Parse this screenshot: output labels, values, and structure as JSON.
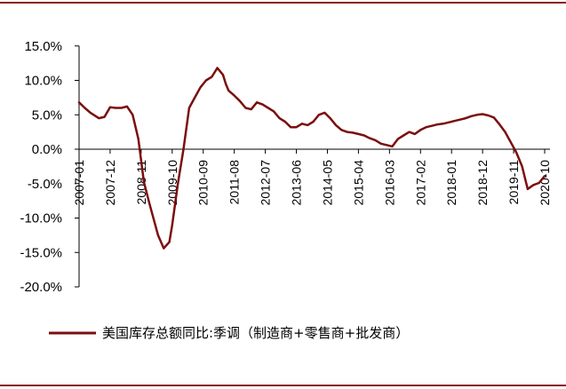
{
  "chart_data": {
    "type": "line",
    "color": "#7b0f0f",
    "ylim": [
      -20,
      15
    ],
    "ytick_labels": [
      "15.0%",
      "10.0%",
      "5.0%",
      "0.0%",
      "-5.0%",
      "-10.0%",
      "-15.0%",
      "-20.0%"
    ],
    "ytick_values": [
      15,
      10,
      5,
      0,
      -5,
      -10,
      -15,
      -20
    ],
    "xtick_labels": [
      "2007-01",
      "2007-12",
      "2008-11",
      "2009-10",
      "2010-09",
      "2011-08",
      "2012-07",
      "2013-06",
      "2014-05",
      "2015-04",
      "2016-03",
      "2017-02",
      "2018-01",
      "2018-12",
      "2019-11",
      "2020-10"
    ],
    "grid": false,
    "legend_position": "bottom",
    "series": [
      {
        "name": "美国库存总额同比:季调（制造商+零售商+批发商）",
        "x": [
          "2007-01",
          "2007-03",
          "2007-05",
          "2007-08",
          "2007-10",
          "2007-12",
          "2008-02",
          "2008-04",
          "2008-06",
          "2008-08",
          "2008-10",
          "2008-12",
          "2009-02",
          "2009-05",
          "2009-07",
          "2009-09",
          "2009-10",
          "2009-12",
          "2010-02",
          "2010-04",
          "2010-06",
          "2010-08",
          "2010-10",
          "2010-12",
          "2011-02",
          "2011-04",
          "2011-05",
          "2011-06",
          "2011-08",
          "2011-10",
          "2011-12",
          "2012-02",
          "2012-04",
          "2012-06",
          "2012-08",
          "2012-10",
          "2012-12",
          "2013-02",
          "2013-04",
          "2013-06",
          "2013-08",
          "2013-10",
          "2013-12",
          "2014-02",
          "2014-04",
          "2014-06",
          "2014-08",
          "2014-10",
          "2014-12",
          "2015-02",
          "2015-04",
          "2015-06",
          "2015-08",
          "2015-10",
          "2015-12",
          "2016-02",
          "2016-04",
          "2016-06",
          "2016-08",
          "2016-10",
          "2016-12",
          "2017-02",
          "2017-04",
          "2017-06",
          "2017-08",
          "2017-10",
          "2017-12",
          "2018-02",
          "2018-04",
          "2018-06",
          "2018-08",
          "2018-10",
          "2018-12",
          "2019-02",
          "2019-04",
          "2019-06",
          "2019-08",
          "2019-10",
          "2019-12",
          "2020-02",
          "2020-04",
          "2020-06",
          "2020-08",
          "2020-10"
        ],
        "values": [
          6.8,
          6.0,
          5.3,
          4.5,
          4.7,
          6.1,
          6.0,
          6.0,
          6.2,
          5.0,
          1.5,
          -4.8,
          -8.0,
          -12.5,
          -14.4,
          -13.5,
          -11.0,
          -5.0,
          0.0,
          6.0,
          7.5,
          9.0,
          10.0,
          10.5,
          11.8,
          10.8,
          9.5,
          8.5,
          7.8,
          7.0,
          6.0,
          5.8,
          6.8,
          6.5,
          6.0,
          5.5,
          4.5,
          4.0,
          3.2,
          3.2,
          3.7,
          3.5,
          4.0,
          5.0,
          5.3,
          4.5,
          3.5,
          2.8,
          2.5,
          2.4,
          2.2,
          2.0,
          1.6,
          1.3,
          0.8,
          0.6,
          0.4,
          1.5,
          2.0,
          2.5,
          2.2,
          2.8,
          3.2,
          3.4,
          3.6,
          3.7,
          3.9,
          4.1,
          4.3,
          4.5,
          4.8,
          5.0,
          5.1,
          4.9,
          4.6,
          3.6,
          2.5,
          1.0,
          -0.5,
          -2.5,
          -5.8,
          -5.2,
          -4.9,
          -3.9
        ]
      }
    ]
  }
}
